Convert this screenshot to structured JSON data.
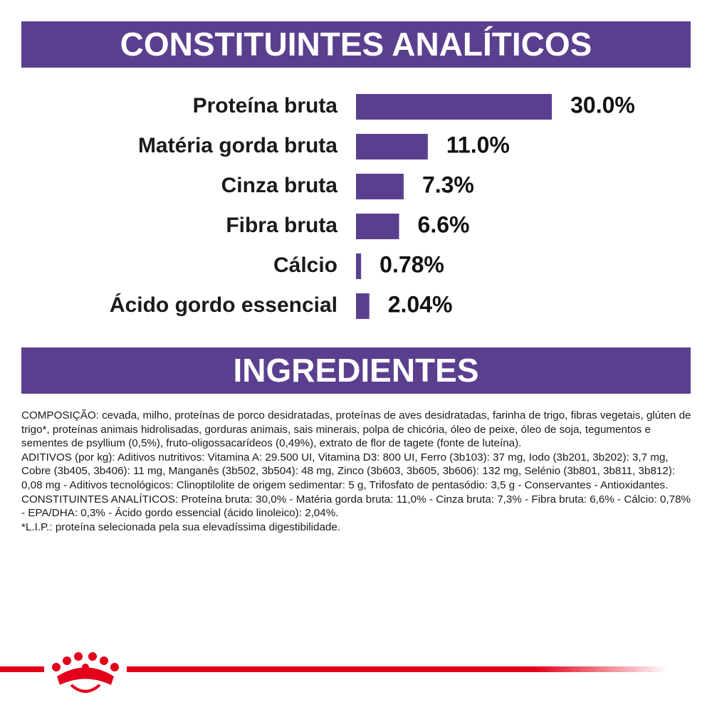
{
  "chart_data": {
    "type": "bar",
    "title": "CONSTITUINTES ANALÍTICOS",
    "categories": [
      "Proteína bruta",
      "Matéria gorda bruta",
      "Cinza bruta",
      "Fibra bruta",
      "Cálcio",
      "Ácido gordo essencial"
    ],
    "values": [
      30.0,
      11.0,
      7.3,
      6.6,
      0.78,
      2.04
    ],
    "value_labels": [
      "30.0%",
      "11.0%",
      "7.3%",
      "6.6%",
      "0.78%",
      "2.04%"
    ],
    "color": "#5b3f8f"
  },
  "ingredients": {
    "title": "INGREDIENTES",
    "paragraphs": [
      "COMPOSIÇÃO: cevada, milho, proteínas de porco desidratadas, proteínas de aves desidratadas, farinha de trigo, fibras vegetais, glúten de trigo*, proteínas animais hidrolisadas, gorduras animais, sais minerais, polpa de chicória, óleo de peixe, óleo de soja, tegumentos e sementes de psyllium (0,5%), fruto-oligossacarídeos (0,49%), extrato de flor de tagete (fonte de luteína).",
      "ADITIVOS (por kg): Aditivos nutritivos: Vitamina A: 29.500 UI, Vitamina D3: 800 UI, Ferro (3b103): 37 mg, Iodo (3b201, 3b202): 3,7 mg, Cobre (3b405, 3b406): 11 mg, Manganês (3b502, 3b504): 48 mg, Zinco (3b603, 3b605, 3b606): 132 mg, Selénio (3b801, 3b811, 3b812): 0,08 mg - Aditivos tecnológicos: Clinoptilolite de origem sedimentar: 5 g, Trifosfato de pentasódio: 3,5 g - Conservantes - Antioxidantes.",
      "CONSTITUINTES ANALÍTICOS: Proteína bruta: 30,0% - Matéria gorda bruta: 11,0% - Cinza bruta: 7,3% - Fibra bruta: 6,6% - Cálcio: 0,78% - EPA/DHA: 0,3% - Ácido gordo essencial (ácido linoleico): 2,04%.",
      "*L.I.P.: proteína selecionada pela sua elevadíssima digestibilidade."
    ]
  }
}
